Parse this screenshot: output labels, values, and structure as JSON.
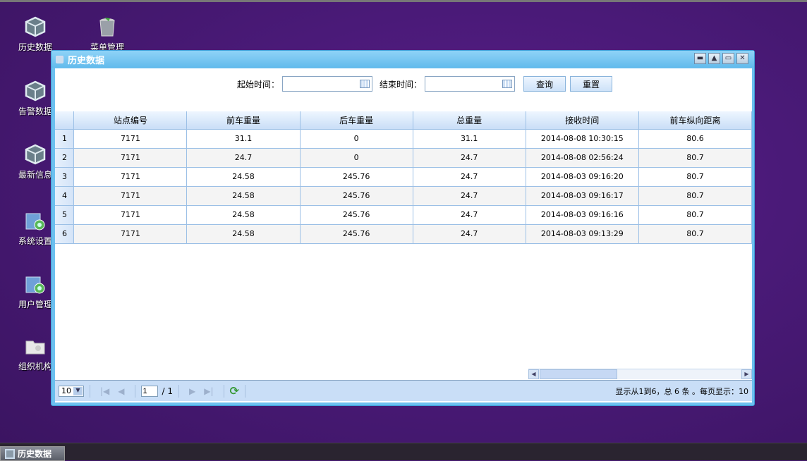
{
  "desktop": {
    "icons": [
      {
        "label": "历史数据",
        "icon": "cube-icon"
      },
      {
        "label": "菜单管理",
        "icon": "trash-bin-icon"
      },
      {
        "label": "告警数据",
        "icon": "cube-icon"
      },
      {
        "label": "最新信息",
        "icon": "cube-icon"
      },
      {
        "label": "系统设置",
        "icon": "folder-settings-icon"
      },
      {
        "label": "用户管理",
        "icon": "folder-settings-icon"
      },
      {
        "label": "组织机构",
        "icon": "folder-icon"
      }
    ]
  },
  "window": {
    "title": "历史数据",
    "controls": [
      "minimize",
      "collapse",
      "maximize",
      "close"
    ]
  },
  "search": {
    "start_label": "起始时间：",
    "start_value": "",
    "end_label": "结束时间：",
    "end_value": "",
    "query": "查询",
    "reset": "重置"
  },
  "grid": {
    "columns": [
      "站点编号",
      "前车重量",
      "后车重量",
      "总重量",
      "接收时间",
      "前车纵向距离"
    ],
    "rows": [
      [
        "1",
        "7171",
        "31.1",
        "0",
        "31.1",
        "2014-08-08 10:30:15",
        "80.6"
      ],
      [
        "2",
        "7171",
        "24.7",
        "0",
        "24.7",
        "2014-08-08 02:56:24",
        "80.7"
      ],
      [
        "3",
        "7171",
        "24.58",
        "245.76",
        "24.7",
        "2014-08-03 09:16:20",
        "80.7"
      ],
      [
        "4",
        "7171",
        "24.58",
        "245.76",
        "24.7",
        "2014-08-03 09:16:17",
        "80.7"
      ],
      [
        "5",
        "7171",
        "24.58",
        "245.76",
        "24.7",
        "2014-08-03 09:16:16",
        "80.7"
      ],
      [
        "6",
        "7171",
        "24.58",
        "245.76",
        "24.7",
        "2014-08-03 09:13:29",
        "80.7"
      ]
    ]
  },
  "pager": {
    "page_size": "10",
    "page": "1",
    "total_pages": "/ 1",
    "info": "显示从1到6，总 6 条 。每页显示：10"
  },
  "taskbar": {
    "task": "历史数据"
  }
}
